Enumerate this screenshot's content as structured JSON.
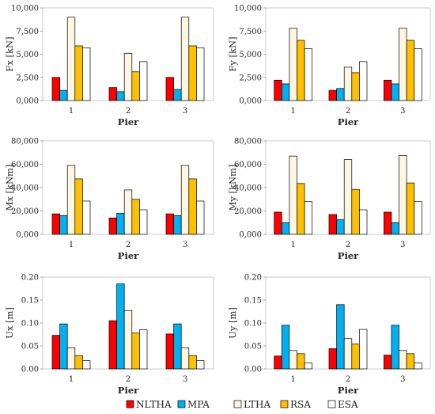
{
  "figure": {
    "series_names": [
      "NLTHA",
      "MPA",
      "LTHA",
      "RSA",
      "ESA"
    ],
    "series_colors": [
      "#ff0000",
      "#00b0f0",
      "#fdf6e3",
      "#ffc000",
      "#ffffff"
    ]
  },
  "chart_data": [
    {
      "type": "bar",
      "ylabel": "Fx [kN]",
      "xlabel": "Pier",
      "categories": [
        "1",
        "2",
        "3"
      ],
      "ylim": [
        0,
        10000
      ],
      "yticks": [
        "0,000",
        "2,500",
        "5,000",
        "7,500",
        "10,000"
      ],
      "grid": false,
      "series": [
        {
          "name": "NLTHA",
          "values": [
            2500,
            1400,
            2500
          ]
        },
        {
          "name": "MPA",
          "values": [
            1100,
            950,
            1200
          ]
        },
        {
          "name": "LTHA",
          "values": [
            9000,
            5100,
            9000
          ]
        },
        {
          "name": "RSA",
          "values": [
            5900,
            3100,
            5900
          ]
        },
        {
          "name": "ESA",
          "values": [
            5700,
            4200,
            5700
          ]
        }
      ]
    },
    {
      "type": "bar",
      "ylabel": "Fy [kN]",
      "xlabel": "Pier",
      "categories": [
        "1",
        "2",
        "3"
      ],
      "ylim": [
        0,
        10000
      ],
      "yticks": [
        "0,000",
        "2,500",
        "5,000",
        "7,500",
        "10,000"
      ],
      "grid": false,
      "series": [
        {
          "name": "NLTHA",
          "values": [
            2200,
            1100,
            2200
          ]
        },
        {
          "name": "MPA",
          "values": [
            1800,
            1300,
            1800
          ]
        },
        {
          "name": "LTHA",
          "values": [
            7800,
            3600,
            7800
          ]
        },
        {
          "name": "RSA",
          "values": [
            6500,
            3000,
            6500
          ]
        },
        {
          "name": "ESA",
          "values": [
            5600,
            4200,
            5600
          ]
        }
      ]
    },
    {
      "type": "bar",
      "ylabel": "Mx [kNm]",
      "xlabel": "Pier",
      "categories": [
        "1",
        "2",
        "3"
      ],
      "ylim": [
        0,
        80000
      ],
      "yticks": [
        "0,000",
        "20,000",
        "40,000",
        "60,000",
        "80,000"
      ],
      "grid": false,
      "series": [
        {
          "name": "NLTHA",
          "values": [
            17500,
            14000,
            17500
          ]
        },
        {
          "name": "MPA",
          "values": [
            16000,
            18000,
            16000
          ]
        },
        {
          "name": "LTHA",
          "values": [
            59000,
            38000,
            59000
          ]
        },
        {
          "name": "RSA",
          "values": [
            47500,
            30000,
            47500
          ]
        },
        {
          "name": "ESA",
          "values": [
            28500,
            21000,
            28500
          ]
        }
      ]
    },
    {
      "type": "bar",
      "ylabel": "My [kNm]",
      "xlabel": "Pier",
      "categories": [
        "1",
        "2",
        "3"
      ],
      "ylim": [
        0,
        80000
      ],
      "yticks": [
        "0,000",
        "20,000",
        "40,000",
        "60,000",
        "80,000"
      ],
      "grid": false,
      "series": [
        {
          "name": "NLTHA",
          "values": [
            19000,
            17000,
            19000
          ]
        },
        {
          "name": "MPA",
          "values": [
            10000,
            12500,
            10000
          ]
        },
        {
          "name": "LTHA",
          "values": [
            67000,
            64000,
            67500
          ]
        },
        {
          "name": "RSA",
          "values": [
            43500,
            38500,
            44000
          ]
        },
        {
          "name": "ESA",
          "values": [
            28000,
            21000,
            28000
          ]
        }
      ]
    },
    {
      "type": "bar",
      "ylabel": "Ux [m]",
      "xlabel": "Pier",
      "categories": [
        "1",
        "2",
        "3"
      ],
      "ylim": [
        0,
        0.2
      ],
      "yticks": [
        "0.00",
        "0.05",
        "0.10",
        "0.15",
        "0.20"
      ],
      "grid": false,
      "series": [
        {
          "name": "NLTHA",
          "values": [
            0.073,
            0.105,
            0.076
          ]
        },
        {
          "name": "MPA",
          "values": [
            0.098,
            0.185,
            0.098
          ]
        },
        {
          "name": "LTHA",
          "values": [
            0.046,
            0.127,
            0.046
          ]
        },
        {
          "name": "RSA",
          "values": [
            0.029,
            0.078,
            0.029
          ]
        },
        {
          "name": "ESA",
          "values": [
            0.018,
            0.085,
            0.018
          ]
        }
      ]
    },
    {
      "type": "bar",
      "ylabel": "Uy [m]",
      "xlabel": "Pier",
      "categories": [
        "1",
        "2",
        "3"
      ],
      "ylim": [
        0,
        0.2
      ],
      "yticks": [
        "0.00",
        "0.05",
        "0.10",
        "0.15",
        "0.20"
      ],
      "grid": false,
      "series": [
        {
          "name": "NLTHA",
          "values": [
            0.028,
            0.044,
            0.03
          ]
        },
        {
          "name": "MPA",
          "values": [
            0.095,
            0.14,
            0.095
          ]
        },
        {
          "name": "LTHA",
          "values": [
            0.04,
            0.066,
            0.04
          ]
        },
        {
          "name": "RSA",
          "values": [
            0.033,
            0.054,
            0.033
          ]
        },
        {
          "name": "ESA",
          "values": [
            0.013,
            0.086,
            0.013
          ]
        }
      ]
    }
  ]
}
